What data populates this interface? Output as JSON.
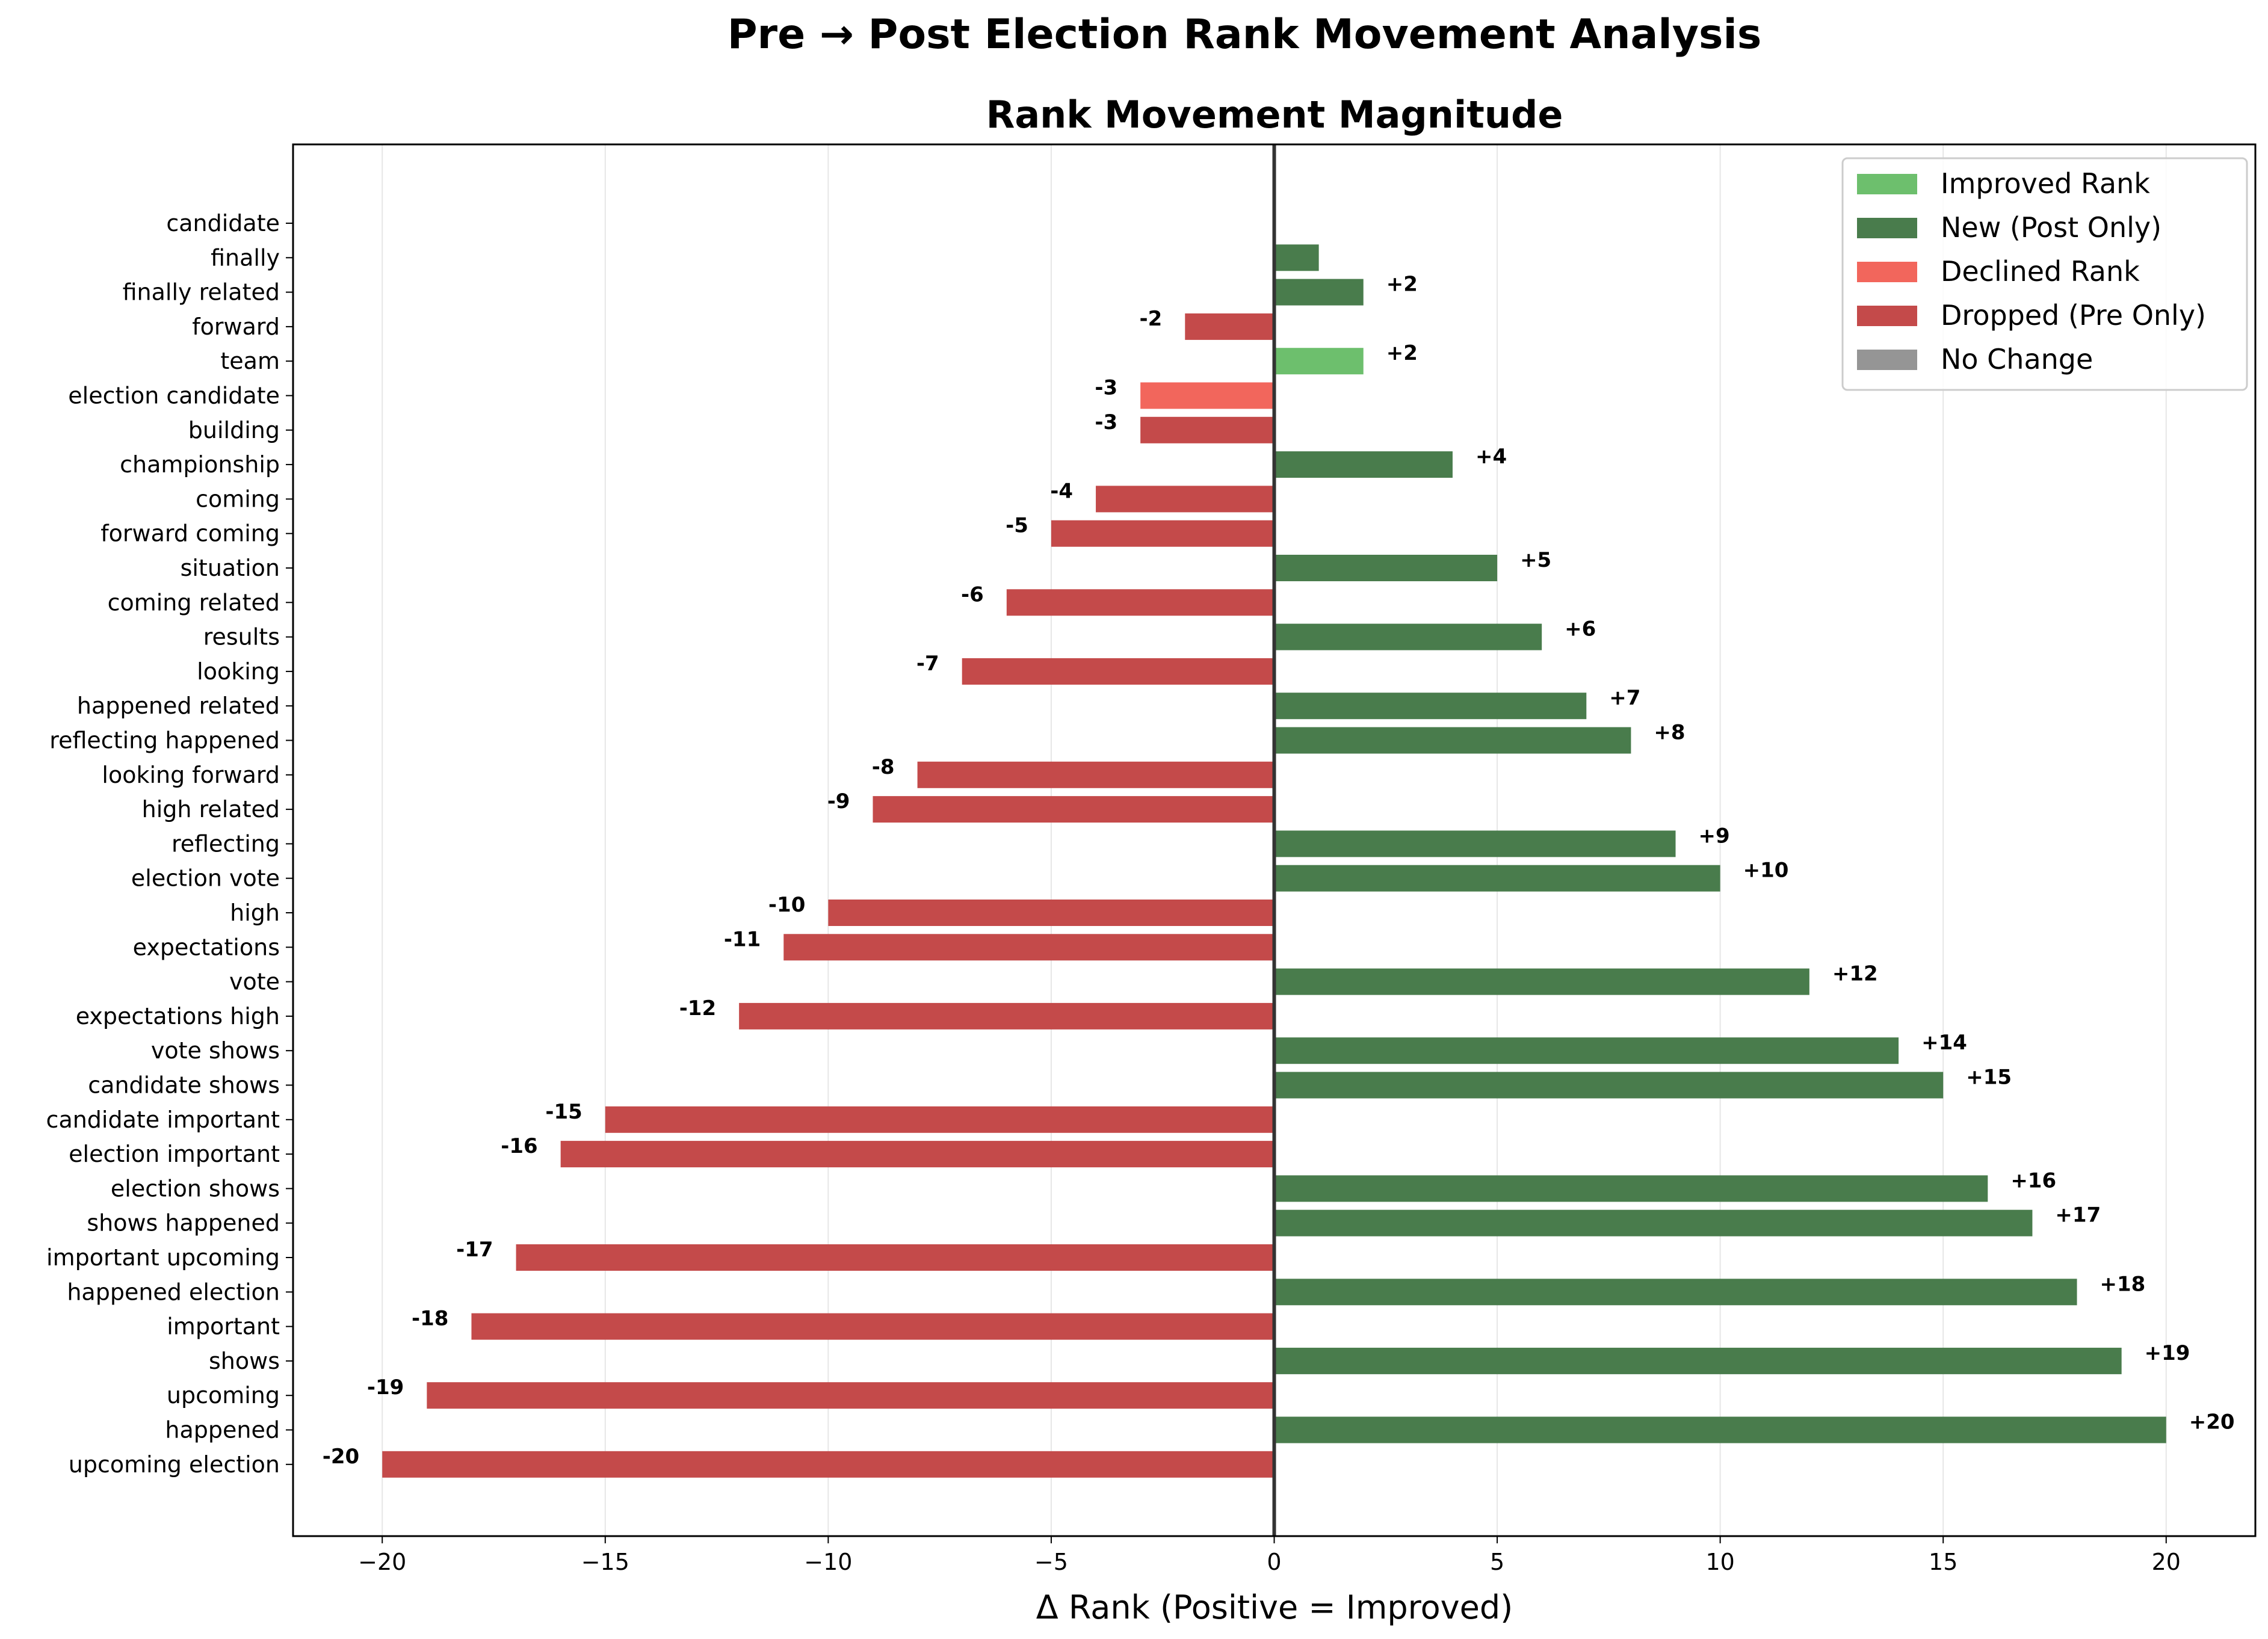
{
  "chart_data": {
    "type": "bar",
    "orientation": "horizontal",
    "suptitle": "Pre → Post Election Rank Movement Analysis",
    "title": "Rank Movement Magnitude",
    "xlabel": "Δ Rank (Positive = Improved)",
    "ylabel": "",
    "xlim": [
      -22,
      22
    ],
    "xticks": [
      -20,
      -15,
      -10,
      -5,
      0,
      5,
      10,
      15,
      20
    ],
    "xtick_labels": [
      "−20",
      "−15",
      "−10",
      "−5",
      "0",
      "5",
      "10",
      "15",
      "20"
    ],
    "grid": "x",
    "legend_placement": "top-right",
    "legend": [
      {
        "label": "Improved Rank",
        "color": "#6dbf6d"
      },
      {
        "label": "New (Post Only)",
        "color": "#497c4c"
      },
      {
        "label": "Declined Rank",
        "color": "#f2665c"
      },
      {
        "label": "Dropped (Pre Only)",
        "color": "#c44a4a"
      },
      {
        "label": "No Change",
        "color": "#959595"
      }
    ],
    "colors": {
      "improved": "#6dbf6d",
      "new": "#497c4c",
      "declined": "#f2665c",
      "dropped": "#c44a4a",
      "nochange": "#959595"
    },
    "bars": [
      {
        "term": "candidate",
        "value": 0,
        "status": "nochange",
        "label": ""
      },
      {
        "term": "finally",
        "value": 1,
        "status": "new",
        "label": ""
      },
      {
        "term": "finally related",
        "value": 2,
        "status": "new",
        "label": "+2"
      },
      {
        "term": "forward",
        "value": -2,
        "status": "dropped",
        "label": "-2"
      },
      {
        "term": "team",
        "value": 2,
        "status": "improved",
        "label": "+2"
      },
      {
        "term": "election candidate",
        "value": -3,
        "status": "declined",
        "label": "-3"
      },
      {
        "term": "building",
        "value": -3,
        "status": "dropped",
        "label": "-3"
      },
      {
        "term": "championship",
        "value": 4,
        "status": "new",
        "label": "+4"
      },
      {
        "term": "coming",
        "value": -4,
        "status": "dropped",
        "label": "-4"
      },
      {
        "term": "forward coming",
        "value": -5,
        "status": "dropped",
        "label": "-5"
      },
      {
        "term": "situation",
        "value": 5,
        "status": "new",
        "label": "+5"
      },
      {
        "term": "coming related",
        "value": -6,
        "status": "dropped",
        "label": "-6"
      },
      {
        "term": "results",
        "value": 6,
        "status": "new",
        "label": "+6"
      },
      {
        "term": "looking",
        "value": -7,
        "status": "dropped",
        "label": "-7"
      },
      {
        "term": "happened related",
        "value": 7,
        "status": "new",
        "label": "+7"
      },
      {
        "term": "reflecting happened",
        "value": 8,
        "status": "new",
        "label": "+8"
      },
      {
        "term": "looking forward",
        "value": -8,
        "status": "dropped",
        "label": "-8"
      },
      {
        "term": "high related",
        "value": -9,
        "status": "dropped",
        "label": "-9"
      },
      {
        "term": "reflecting",
        "value": 9,
        "status": "new",
        "label": "+9"
      },
      {
        "term": "election vote",
        "value": 10,
        "status": "new",
        "label": "+10"
      },
      {
        "term": "high",
        "value": -10,
        "status": "dropped",
        "label": "-10"
      },
      {
        "term": "expectations",
        "value": -11,
        "status": "dropped",
        "label": "-11"
      },
      {
        "term": "vote",
        "value": 12,
        "status": "new",
        "label": "+12"
      },
      {
        "term": "expectations high",
        "value": -12,
        "status": "dropped",
        "label": "-12"
      },
      {
        "term": "vote shows",
        "value": 14,
        "status": "new",
        "label": "+14"
      },
      {
        "term": "candidate shows",
        "value": 15,
        "status": "new",
        "label": "+15"
      },
      {
        "term": "candidate important",
        "value": -15,
        "status": "dropped",
        "label": "-15"
      },
      {
        "term": "election important",
        "value": -16,
        "status": "dropped",
        "label": "-16"
      },
      {
        "term": "election shows",
        "value": 16,
        "status": "new",
        "label": "+16"
      },
      {
        "term": "shows happened",
        "value": 17,
        "status": "new",
        "label": "+17"
      },
      {
        "term": "important upcoming",
        "value": -17,
        "status": "dropped",
        "label": "-17"
      },
      {
        "term": "happened election",
        "value": 18,
        "status": "new",
        "label": "+18"
      },
      {
        "term": "important",
        "value": -18,
        "status": "dropped",
        "label": "-18"
      },
      {
        "term": "shows",
        "value": 19,
        "status": "new",
        "label": "+19"
      },
      {
        "term": "upcoming",
        "value": -19,
        "status": "dropped",
        "label": "-19"
      },
      {
        "term": "happened",
        "value": 20,
        "status": "new",
        "label": "+20"
      },
      {
        "term": "upcoming election",
        "value": -20,
        "status": "dropped",
        "label": "-20"
      }
    ]
  }
}
